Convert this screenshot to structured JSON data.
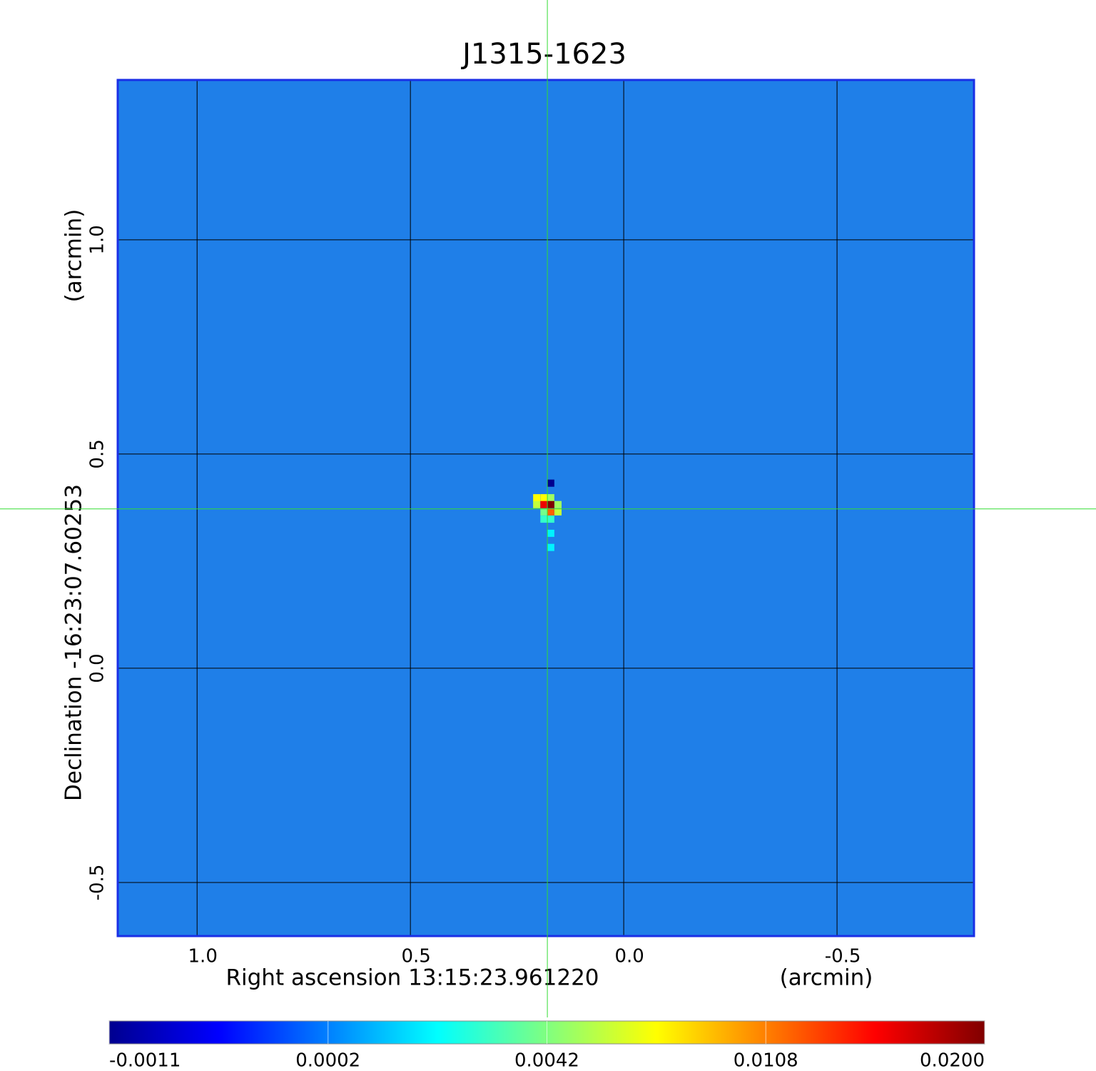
{
  "chart_data": {
    "type": "heatmap",
    "title": "J1315-1623",
    "x_label": "Right ascension  13:15:23.961220",
    "x_unit": "(arcmin)",
    "y_label": "Declination  -16:23:07.60253",
    "y_unit": "(arcmin)",
    "xlim": [
      1.186,
      -0.821
    ],
    "ylim": [
      -0.625,
      1.373
    ],
    "xticks": [
      {
        "value": 1,
        "label": "1.0"
      },
      0.5,
      {
        "value": 0,
        "label": "0.0"
      },
      -0.5
    ],
    "yticks": [
      {
        "value": 1,
        "label": "1.0"
      },
      0.5,
      {
        "value": 0,
        "label": "0.0"
      },
      -0.5
    ],
    "grid": true,
    "background_color": "#1f7fe8",
    "frame_color": "#1a2fe6",
    "title_color": "#1515d0",
    "pixel_size": 0.0167,
    "pixels": {
      "x": [
        0.204,
        0.187,
        0.171,
        0.204,
        0.187,
        0.171,
        0.154,
        0.187,
        0.171,
        0.154,
        0.187,
        0.171,
        0.171,
        0.171,
        0.171
      ],
      "y": [
        0.398,
        0.398,
        0.398,
        0.382,
        0.382,
        0.382,
        0.382,
        0.365,
        0.365,
        0.365,
        0.348,
        0.348,
        0.432,
        0.315,
        0.282
      ],
      "values": [
        0.0075,
        0.0075,
        0.005,
        0.006,
        0.016,
        0.02,
        0.005,
        0.004,
        0.012,
        0.006,
        0.003,
        0.003,
        -0.0011,
        0.002,
        0.002
      ]
    },
    "crosshair": {
      "x": 0.179,
      "y": 0.372,
      "color": "#33dd33"
    },
    "colorbar": {
      "ticks": [
        -0.0011,
        0.0002,
        0.0042,
        0.0108,
        {
          "value": 0.02,
          "label": "0.0200"
        }
      ],
      "colors": [
        "#00008f",
        "#0000ff",
        "#0080ff",
        "#00ffff",
        "#80ff80",
        "#ffff00",
        "#ff8000",
        "#ff0000",
        "#800000"
      ]
    }
  }
}
